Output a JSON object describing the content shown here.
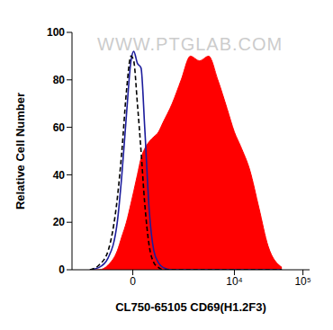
{
  "chart_data": {
    "type": "line",
    "watermark": "WWW.PTGLAB.COM",
    "x_label": "CL750-65105 CD69(H1.2F3)",
    "y_label": "Relative Cell Number",
    "x": [
      -1314,
      -918,
      -612,
      -360,
      -248,
      -143,
      -40,
      20,
      102,
      185,
      271,
      383,
      506,
      640,
      789,
      1150,
      1610,
      2237,
      3070,
      4185,
      5715,
      7790,
      10000,
      12340,
      16770,
      22830,
      31000,
      49170
    ],
    "series": [
      {
        "type": "area",
        "color": "#ff0000",
        "values": [
          0,
          0,
          2,
          8,
          14,
          20,
          28,
          33,
          40,
          47,
          51,
          54,
          56,
          58,
          62,
          70,
          80,
          90,
          88,
          90,
          80,
          68,
          58,
          52,
          42,
          26,
          10,
          1
        ]
      },
      {
        "type": "line",
        "color": "#1c1c9c",
        "line_style": "solid",
        "values": [
          0,
          1,
          5,
          20,
          40,
          65,
          88,
          92,
          87,
          85,
          60,
          25,
          8,
          3,
          1,
          0,
          0,
          0,
          0,
          0,
          0,
          0,
          0,
          0,
          0,
          0,
          0,
          0
        ]
      },
      {
        "type": "line",
        "color": "#000000",
        "line_style": "dashed",
        "values": [
          0,
          2,
          8,
          30,
          50,
          75,
          90,
          88,
          70,
          50,
          28,
          10,
          3,
          1,
          0,
          0,
          0,
          0,
          0,
          0,
          0,
          0,
          0,
          0,
          0,
          0,
          0,
          0
        ]
      }
    ],
    "xlim": [
      -2500,
      125000
    ],
    "xticks": [
      0,
      {
        "value": 10000,
        "label": "10⁴"
      },
      {
        "value": 100000,
        "label": "10⁵"
      }
    ],
    "ylim": [
      0,
      100
    ],
    "yticks": [
      0,
      20,
      40,
      60,
      80,
      100
    ],
    "grid": false
  }
}
